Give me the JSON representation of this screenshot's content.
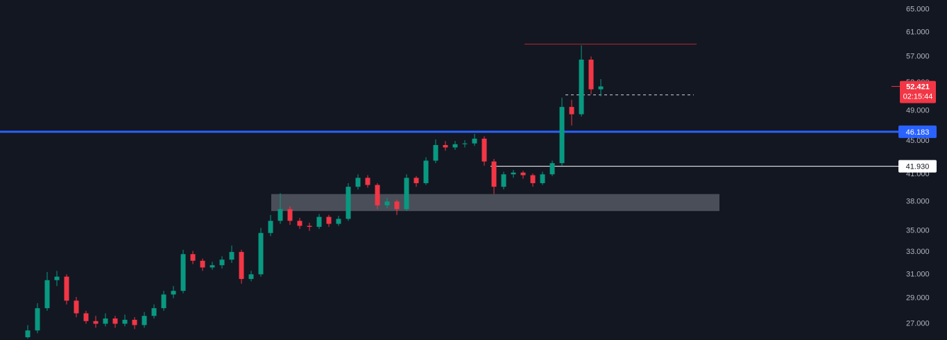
{
  "chart_data": {
    "type": "candlestick",
    "log_scale": true,
    "ylim": [
      25.8,
      66.75
    ],
    "yticks": [
      {
        "value": 65,
        "label": "65.000"
      },
      {
        "value": 61,
        "label": "61.000"
      },
      {
        "value": 57,
        "label": "57.000"
      },
      {
        "value": 53,
        "label": "53.000"
      },
      {
        "value": 49,
        "label": "49.000"
      },
      {
        "value": 45,
        "label": "45.000"
      },
      {
        "value": 41,
        "label": "41.000"
      },
      {
        "value": 38,
        "label": "38.000"
      },
      {
        "value": 35,
        "label": "35.000"
      },
      {
        "value": 33,
        "label": "33.000"
      },
      {
        "value": 31,
        "label": "31.000"
      },
      {
        "value": 29,
        "label": "29.000"
      },
      {
        "value": 27,
        "label": "27.000"
      }
    ],
    "up_color": "#089981",
    "down_color": "#f23645",
    "open": [
      26.0,
      26.5,
      28.2,
      30.5,
      30.8,
      28.8,
      27.8,
      27.2,
      27.0,
      27.4,
      27.0,
      27.3,
      26.9,
      27.6,
      28.2,
      29.3,
      29.6,
      32.8,
      32.2,
      31.6,
      31.8,
      32.3,
      33.0,
      30.6,
      31.0,
      34.8,
      36.0,
      37.2,
      36.0,
      35.5,
      35.4,
      36.4,
      35.7,
      36.2,
      39.6,
      40.6,
      39.8,
      37.6,
      38.0,
      37.2,
      40.6,
      40.0,
      42.6,
      44.5,
      44.2,
      44.6,
      44.7,
      45.3,
      42.5,
      39.6,
      41.0,
      41.2,
      40.9,
      40.0,
      41.0,
      42.3,
      49.5,
      48.5,
      56.5,
      52.0
    ],
    "high": [
      26.9,
      28.6,
      31.2,
      31.3,
      31.0,
      29.1,
      28.0,
      27.6,
      27.8,
      27.6,
      27.7,
      27.5,
      27.9,
      28.5,
      29.6,
      30.0,
      33.2,
      33.1,
      32.4,
      32.1,
      32.6,
      33.6,
      33.2,
      31.3,
      35.3,
      36.6,
      38.9,
      37.5,
      36.3,
      35.8,
      36.7,
      36.6,
      36.5,
      40.0,
      41.0,
      40.9,
      40.0,
      38.4,
      38.2,
      41.0,
      40.8,
      43.0,
      45.2,
      45.0,
      45.0,
      45.1,
      45.9,
      45.6,
      42.8,
      41.3,
      41.5,
      41.4,
      41.1,
      41.3,
      42.6,
      50.8,
      50.5,
      58.8,
      57.0,
      53.5
    ],
    "low": [
      25.9,
      26.3,
      28.0,
      30.0,
      28.5,
      27.5,
      27.0,
      26.7,
      26.8,
      26.7,
      26.8,
      26.6,
      26.7,
      27.4,
      28.0,
      29.0,
      29.4,
      31.9,
      31.3,
      31.4,
      31.5,
      32.0,
      30.2,
      30.4,
      30.8,
      34.5,
      35.7,
      35.6,
      35.2,
      35.0,
      35.2,
      35.4,
      35.5,
      36.0,
      39.3,
      39.5,
      37.2,
      37.3,
      36.6,
      37.0,
      39.6,
      39.8,
      42.3,
      43.8,
      43.9,
      44.2,
      44.4,
      42.0,
      38.8,
      39.3,
      40.6,
      40.5,
      39.6,
      39.8,
      40.8,
      42.0,
      47.0,
      48.2,
      51.3,
      51.0
    ],
    "close": [
      26.5,
      28.2,
      30.5,
      30.8,
      28.8,
      27.8,
      27.2,
      27.0,
      27.4,
      27.0,
      27.3,
      26.9,
      27.6,
      28.2,
      29.3,
      29.6,
      32.8,
      32.2,
      31.6,
      31.8,
      32.3,
      33.0,
      30.6,
      31.0,
      34.8,
      36.0,
      37.2,
      36.0,
      35.5,
      35.4,
      36.4,
      35.7,
      36.2,
      39.6,
      40.6,
      39.8,
      37.6,
      38.0,
      37.2,
      40.6,
      40.0,
      42.6,
      44.5,
      44.2,
      44.6,
      44.7,
      45.3,
      42.5,
      39.6,
      41.0,
      41.2,
      40.9,
      40.0,
      41.0,
      42.3,
      49.5,
      48.5,
      56.5,
      52.0,
      52.421
    ],
    "levels": [
      {
        "value": 46.183,
        "label": "46.183",
        "color": "#2962ff"
      },
      {
        "value": 41.93,
        "label": "41.930",
        "color": "#ffffff"
      }
    ],
    "resistance": {
      "value": 59.0,
      "color": "#b22833"
    },
    "dashed_level": 51.2,
    "zone": [
      37.0,
      38.8
    ],
    "last_price": {
      "value": 52.421,
      "label": "52.421",
      "countdown": "02:15:44",
      "color": "#f23645"
    }
  }
}
